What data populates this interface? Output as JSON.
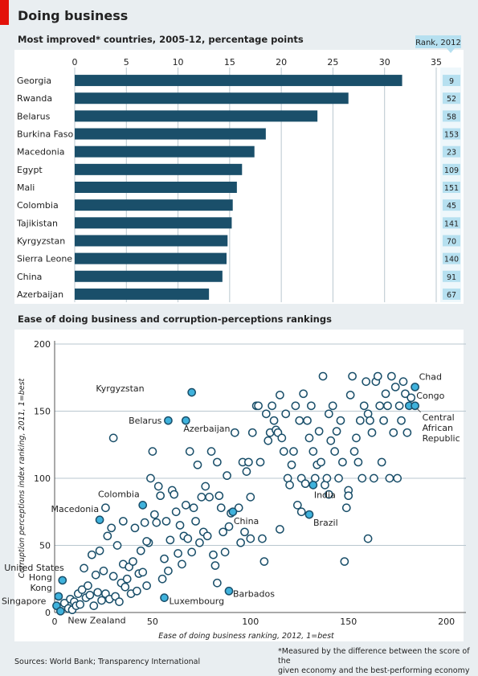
{
  "header": {
    "title": "Doing business",
    "subtitle1": "Most improved* countries, 2005-12, percentage points",
    "subtitle2": "Ease of doing business and corruption-perceptions rankings",
    "rank_header": "Rank, 2012"
  },
  "footer": {
    "sources": "Sources: World Bank; Transparency International",
    "note_line1": "*Measured by the difference between the score of the",
    "note_line2": "given economy and the best-performing economy"
  },
  "colors": {
    "bar": "#1a4f6a",
    "dot_highlight": "#3fb2dc",
    "dot_stroke": "#1a4f6a",
    "rank_box": "#b6e0f0",
    "panel_bg": "#ffffff",
    "page_bg": "#e9eef1"
  },
  "chart_data": [
    {
      "type": "bar",
      "orientation": "horizontal",
      "title": "Most improved* countries, 2005-12, percentage points",
      "categories": [
        "Georgia",
        "Rwanda",
        "Belarus",
        "Burkina Faso",
        "Macedonia",
        "Egypt",
        "Mali",
        "Colombia",
        "Tajikistan",
        "Kyrgyzstan",
        "Sierra Leone",
        "China",
        "Azerbaijan"
      ],
      "values": [
        31.7,
        26.5,
        23.5,
        18.5,
        17.4,
        16.2,
        15.7,
        15.3,
        15.2,
        14.8,
        14.7,
        14.3,
        13.0
      ],
      "ranks_2012": [
        9,
        52,
        58,
        153,
        23,
        109,
        151,
        45,
        141,
        70,
        140,
        91,
        67
      ],
      "rank_label": "Rank, 2012",
      "xlim": [
        0,
        35
      ],
      "xticks": [
        0,
        5,
        10,
        15,
        20,
        25,
        30,
        35
      ]
    },
    {
      "type": "scatter",
      "title": "Ease of doing business and corruption-perceptions rankings",
      "xlabel": "Ease of doing business ranking, 2012, 1=best",
      "ylabel": "Corruption perceptions index ranking, 2011, 1=best",
      "xlim": [
        0,
        210
      ],
      "ylim": [
        0,
        200
      ],
      "xticks": [
        0,
        50,
        100,
        150,
        200
      ],
      "yticks": [
        0,
        50,
        100,
        150,
        200
      ],
      "highlighted": [
        {
          "name": "Singapore",
          "x": 1,
          "y": 5
        },
        {
          "name": "Hong Kong",
          "x": 2,
          "y": 12
        },
        {
          "name": "New Zealand",
          "x": 3,
          "y": 1
        },
        {
          "name": "United States",
          "x": 4,
          "y": 24
        },
        {
          "name": "Macedonia",
          "x": 23,
          "y": 69
        },
        {
          "name": "Colombia",
          "x": 45,
          "y": 80
        },
        {
          "name": "Luxembourg",
          "x": 56,
          "y": 11
        },
        {
          "name": "Belarus",
          "x": 58,
          "y": 143
        },
        {
          "name": "Azerbaijan",
          "x": 67,
          "y": 143
        },
        {
          "name": "Kyrgyzstan",
          "x": 70,
          "y": 164
        },
        {
          "name": "Barbados",
          "x": 89,
          "y": 16
        },
        {
          "name": "China",
          "x": 91,
          "y": 75
        },
        {
          "name": "India",
          "x": 132,
          "y": 95
        },
        {
          "name": "Brazil",
          "x": 130,
          "y": 73
        },
        {
          "name": "Chad",
          "x": 184,
          "y": 168
        },
        {
          "name": "Congo",
          "x": 181,
          "y": 154
        },
        {
          "name": "Central African Republic",
          "x": 184,
          "y": 154
        }
      ],
      "others": [
        [
          5,
          7
        ],
        [
          7,
          3
        ],
        [
          8,
          10
        ],
        [
          9,
          2
        ],
        [
          10,
          8
        ],
        [
          11,
          5
        ],
        [
          12,
          14
        ],
        [
          13,
          6
        ],
        [
          14,
          17
        ],
        [
          15,
          33
        ],
        [
          16,
          11
        ],
        [
          17,
          20
        ],
        [
          18,
          13
        ],
        [
          19,
          43
        ],
        [
          20,
          5
        ],
        [
          21,
          28
        ],
        [
          22,
          15
        ],
        [
          23,
          46
        ],
        [
          24,
          9
        ],
        [
          25,
          31
        ],
        [
          26,
          14
        ],
        [
          27,
          57
        ],
        [
          28,
          10
        ],
        [
          29,
          63
        ],
        [
          30,
          27
        ],
        [
          31,
          12
        ],
        [
          32,
          50
        ],
        [
          33,
          8
        ],
        [
          34,
          22
        ],
        [
          35,
          36
        ],
        [
          36,
          19
        ],
        [
          37,
          25
        ],
        [
          38,
          34
        ],
        [
          39,
          14
        ],
        [
          40,
          38
        ],
        [
          41,
          63
        ],
        [
          42,
          16
        ],
        [
          43,
          29
        ],
        [
          44,
          46
        ],
        [
          45,
          30
        ],
        [
          46,
          67
        ],
        [
          47,
          20
        ],
        [
          48,
          52
        ],
        [
          49,
          100
        ],
        [
          50,
          120
        ],
        [
          51,
          73
        ],
        [
          52,
          67
        ],
        [
          53,
          94
        ],
        [
          54,
          87
        ],
        [
          55,
          25
        ],
        [
          56,
          40
        ],
        [
          57,
          68
        ],
        [
          58,
          31
        ],
        [
          59,
          54
        ],
        [
          60,
          91
        ],
        [
          61,
          88
        ],
        [
          62,
          75
        ],
        [
          63,
          44
        ],
        [
          64,
          65
        ],
        [
          65,
          36
        ],
        [
          66,
          57
        ],
        [
          67,
          80
        ],
        [
          68,
          55
        ],
        [
          69,
          120
        ],
        [
          70,
          45
        ],
        [
          71,
          78
        ],
        [
          72,
          68
        ],
        [
          73,
          110
        ],
        [
          74,
          52
        ],
        [
          75,
          86
        ],
        [
          76,
          60
        ],
        [
          77,
          94
        ],
        [
          78,
          57
        ],
        [
          79,
          86
        ],
        [
          80,
          120
        ],
        [
          81,
          43
        ],
        [
          82,
          35
        ],
        [
          83,
          22
        ],
        [
          84,
          87
        ],
        [
          85,
          78
        ],
        [
          86,
          60
        ],
        [
          87,
          45
        ],
        [
          88,
          102
        ],
        [
          89,
          64
        ],
        [
          90,
          74
        ],
        [
          92,
          134
        ],
        [
          94,
          78
        ],
        [
          95,
          52
        ],
        [
          96,
          112
        ],
        [
          97,
          60
        ],
        [
          98,
          105
        ],
        [
          99,
          112
        ],
        [
          100,
          86
        ],
        [
          101,
          134
        ],
        [
          103,
          154
        ],
        [
          104,
          154
        ],
        [
          105,
          112
        ],
        [
          106,
          55
        ],
        [
          107,
          38
        ],
        [
          108,
          148
        ],
        [
          109,
          128
        ],
        [
          110,
          134
        ],
        [
          111,
          154
        ],
        [
          112,
          143
        ],
        [
          113,
          136
        ],
        [
          114,
          134
        ],
        [
          115,
          162
        ],
        [
          116,
          130
        ],
        [
          117,
          120
        ],
        [
          118,
          148
        ],
        [
          119,
          100
        ],
        [
          120,
          95
        ],
        [
          121,
          110
        ],
        [
          122,
          120
        ],
        [
          123,
          154
        ],
        [
          124,
          80
        ],
        [
          125,
          143
        ],
        [
          126,
          100
        ],
        [
          127,
          163
        ],
        [
          128,
          96
        ],
        [
          129,
          143
        ],
        [
          130,
          130
        ],
        [
          131,
          154
        ],
        [
          132,
          120
        ],
        [
          133,
          100
        ],
        [
          134,
          110
        ],
        [
          135,
          135
        ],
        [
          136,
          112
        ],
        [
          137,
          176
        ],
        [
          138,
          95
        ],
        [
          139,
          100
        ],
        [
          140,
          148
        ],
        [
          141,
          128
        ],
        [
          142,
          154
        ],
        [
          143,
          120
        ],
        [
          144,
          135
        ],
        [
          145,
          100
        ],
        [
          146,
          143
        ],
        [
          147,
          112
        ],
        [
          148,
          38
        ],
        [
          149,
          78
        ],
        [
          150,
          91
        ],
        [
          151,
          162
        ],
        [
          152,
          176
        ],
        [
          153,
          120
        ],
        [
          154,
          130
        ],
        [
          155,
          112
        ],
        [
          156,
          143
        ],
        [
          157,
          100
        ],
        [
          158,
          154
        ],
        [
          159,
          172
        ],
        [
          160,
          148
        ],
        [
          161,
          143
        ],
        [
          162,
          134
        ],
        [
          163,
          100
        ],
        [
          164,
          172
        ],
        [
          165,
          176
        ],
        [
          166,
          154
        ],
        [
          167,
          112
        ],
        [
          168,
          143
        ],
        [
          169,
          163
        ],
        [
          170,
          154
        ],
        [
          171,
          100
        ],
        [
          172,
          176
        ],
        [
          173,
          134
        ],
        [
          174,
          168
        ],
        [
          175,
          100
        ],
        [
          176,
          154
        ],
        [
          177,
          143
        ],
        [
          178,
          172
        ],
        [
          179,
          163
        ],
        [
          180,
          134
        ],
        [
          182,
          160
        ],
        [
          30,
          130
        ],
        [
          26,
          78
        ],
        [
          35,
          68
        ],
        [
          47,
          53
        ],
        [
          83,
          112
        ],
        [
          100,
          55
        ],
        [
          115,
          62
        ],
        [
          126,
          75
        ],
        [
          140,
          88
        ],
        [
          150,
          87
        ],
        [
          160,
          55
        ]
      ]
    }
  ]
}
